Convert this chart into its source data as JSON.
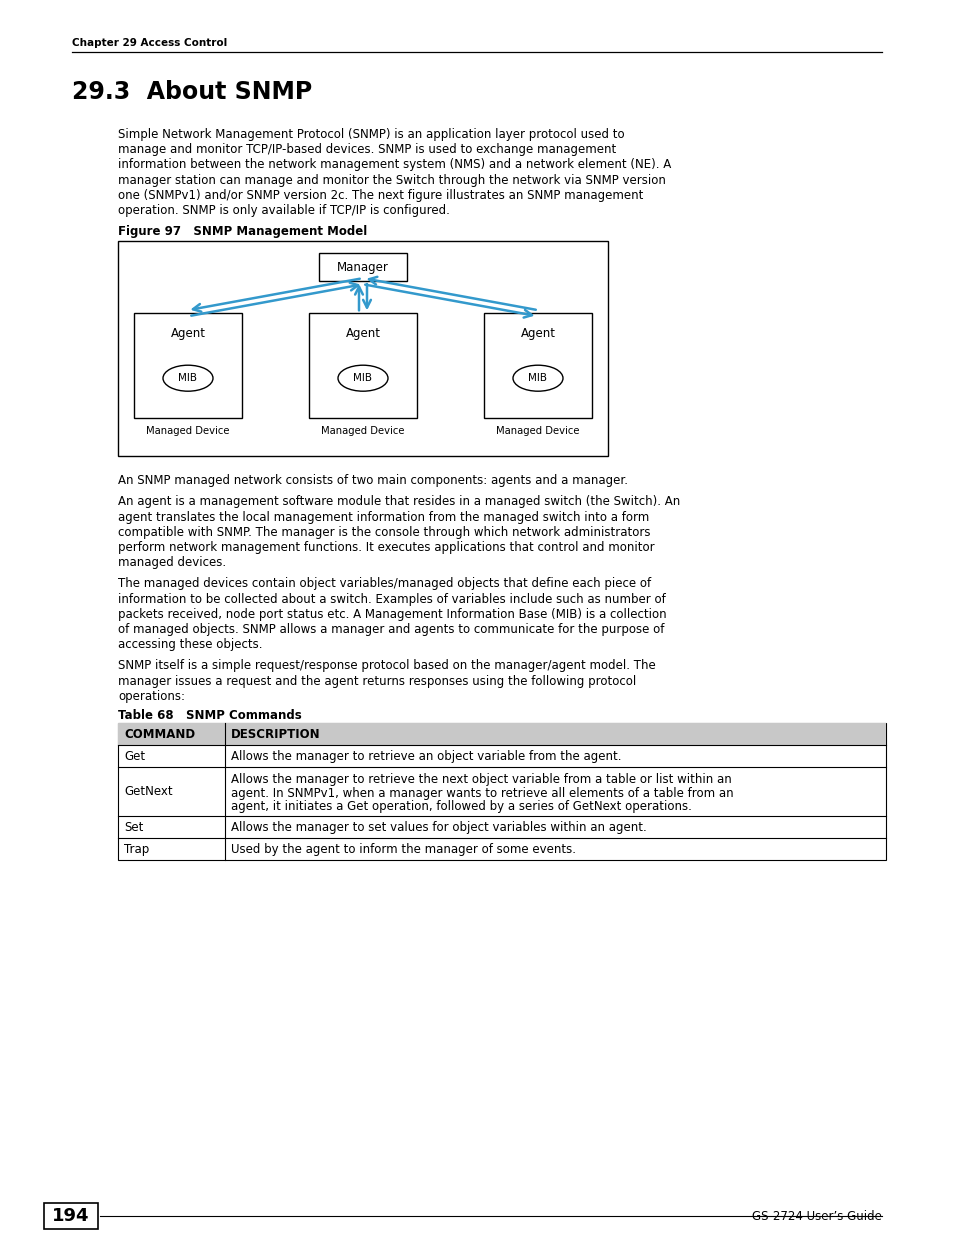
{
  "page_title": "Chapter 29 Access Control",
  "section_title": "29.3  About SNMP",
  "body_text_1": "Simple Network Management Protocol (SNMP) is an application layer protocol used to\nmanage and monitor TCP/IP-based devices. SNMP is used to exchange management\ninformation between the network management system (NMS) and a network element (NE). A\nmanager station can manage and monitor the Switch through the network via SNMP version\none (SNMPv1) and/or SNMP version 2c. The next figure illustrates an SNMP management\noperation. SNMP is only available if TCP/IP is configured.",
  "figure_label": "Figure 97   SNMP Management Model",
  "body_text_2": "An SNMP managed network consists of two main components: agents and a manager.",
  "body_text_3": "An agent is a management software module that resides in a managed switch (the Switch). An\nagent translates the local management information from the managed switch into a form\ncompatible with SNMP. The manager is the console through which network administrators\nperform network management functions. It executes applications that control and monitor\nmanaged devices.",
  "body_text_4": "The managed devices contain object variables/managed objects that define each piece of\ninformation to be collected about a switch. Examples of variables include such as number of\npackets received, node port status etc. A Management Information Base (MIB) is a collection\nof managed objects. SNMP allows a manager and agents to communicate for the purpose of\naccessing these objects.",
  "body_text_5": "SNMP itself is a simple request/response protocol based on the manager/agent model. The\nmanager issues a request and the agent returns responses using the following protocol\noperations:",
  "table_label": "Table 68   SNMP Commands",
  "table_headers": [
    "COMMAND",
    "DESCRIPTION"
  ],
  "table_rows": [
    [
      "Get",
      "Allows the manager to retrieve an object variable from the agent."
    ],
    [
      "GetNext",
      "Allows the manager to retrieve the next object variable from a table or list within an\nagent. In SNMPv1, when a manager wants to retrieve all elements of a table from an\nagent, it initiates a Get operation, followed by a series of GetNext operations."
    ],
    [
      "Set",
      "Allows the manager to set values for object variables within an agent."
    ],
    [
      "Trap",
      "Used by the agent to inform the manager of some events."
    ]
  ],
  "page_number": "194",
  "footer_text": "GS-2724 User’s Guide",
  "arrow_color": "#3399CC",
  "box_color": "#000000",
  "bg_color": "#ffffff"
}
